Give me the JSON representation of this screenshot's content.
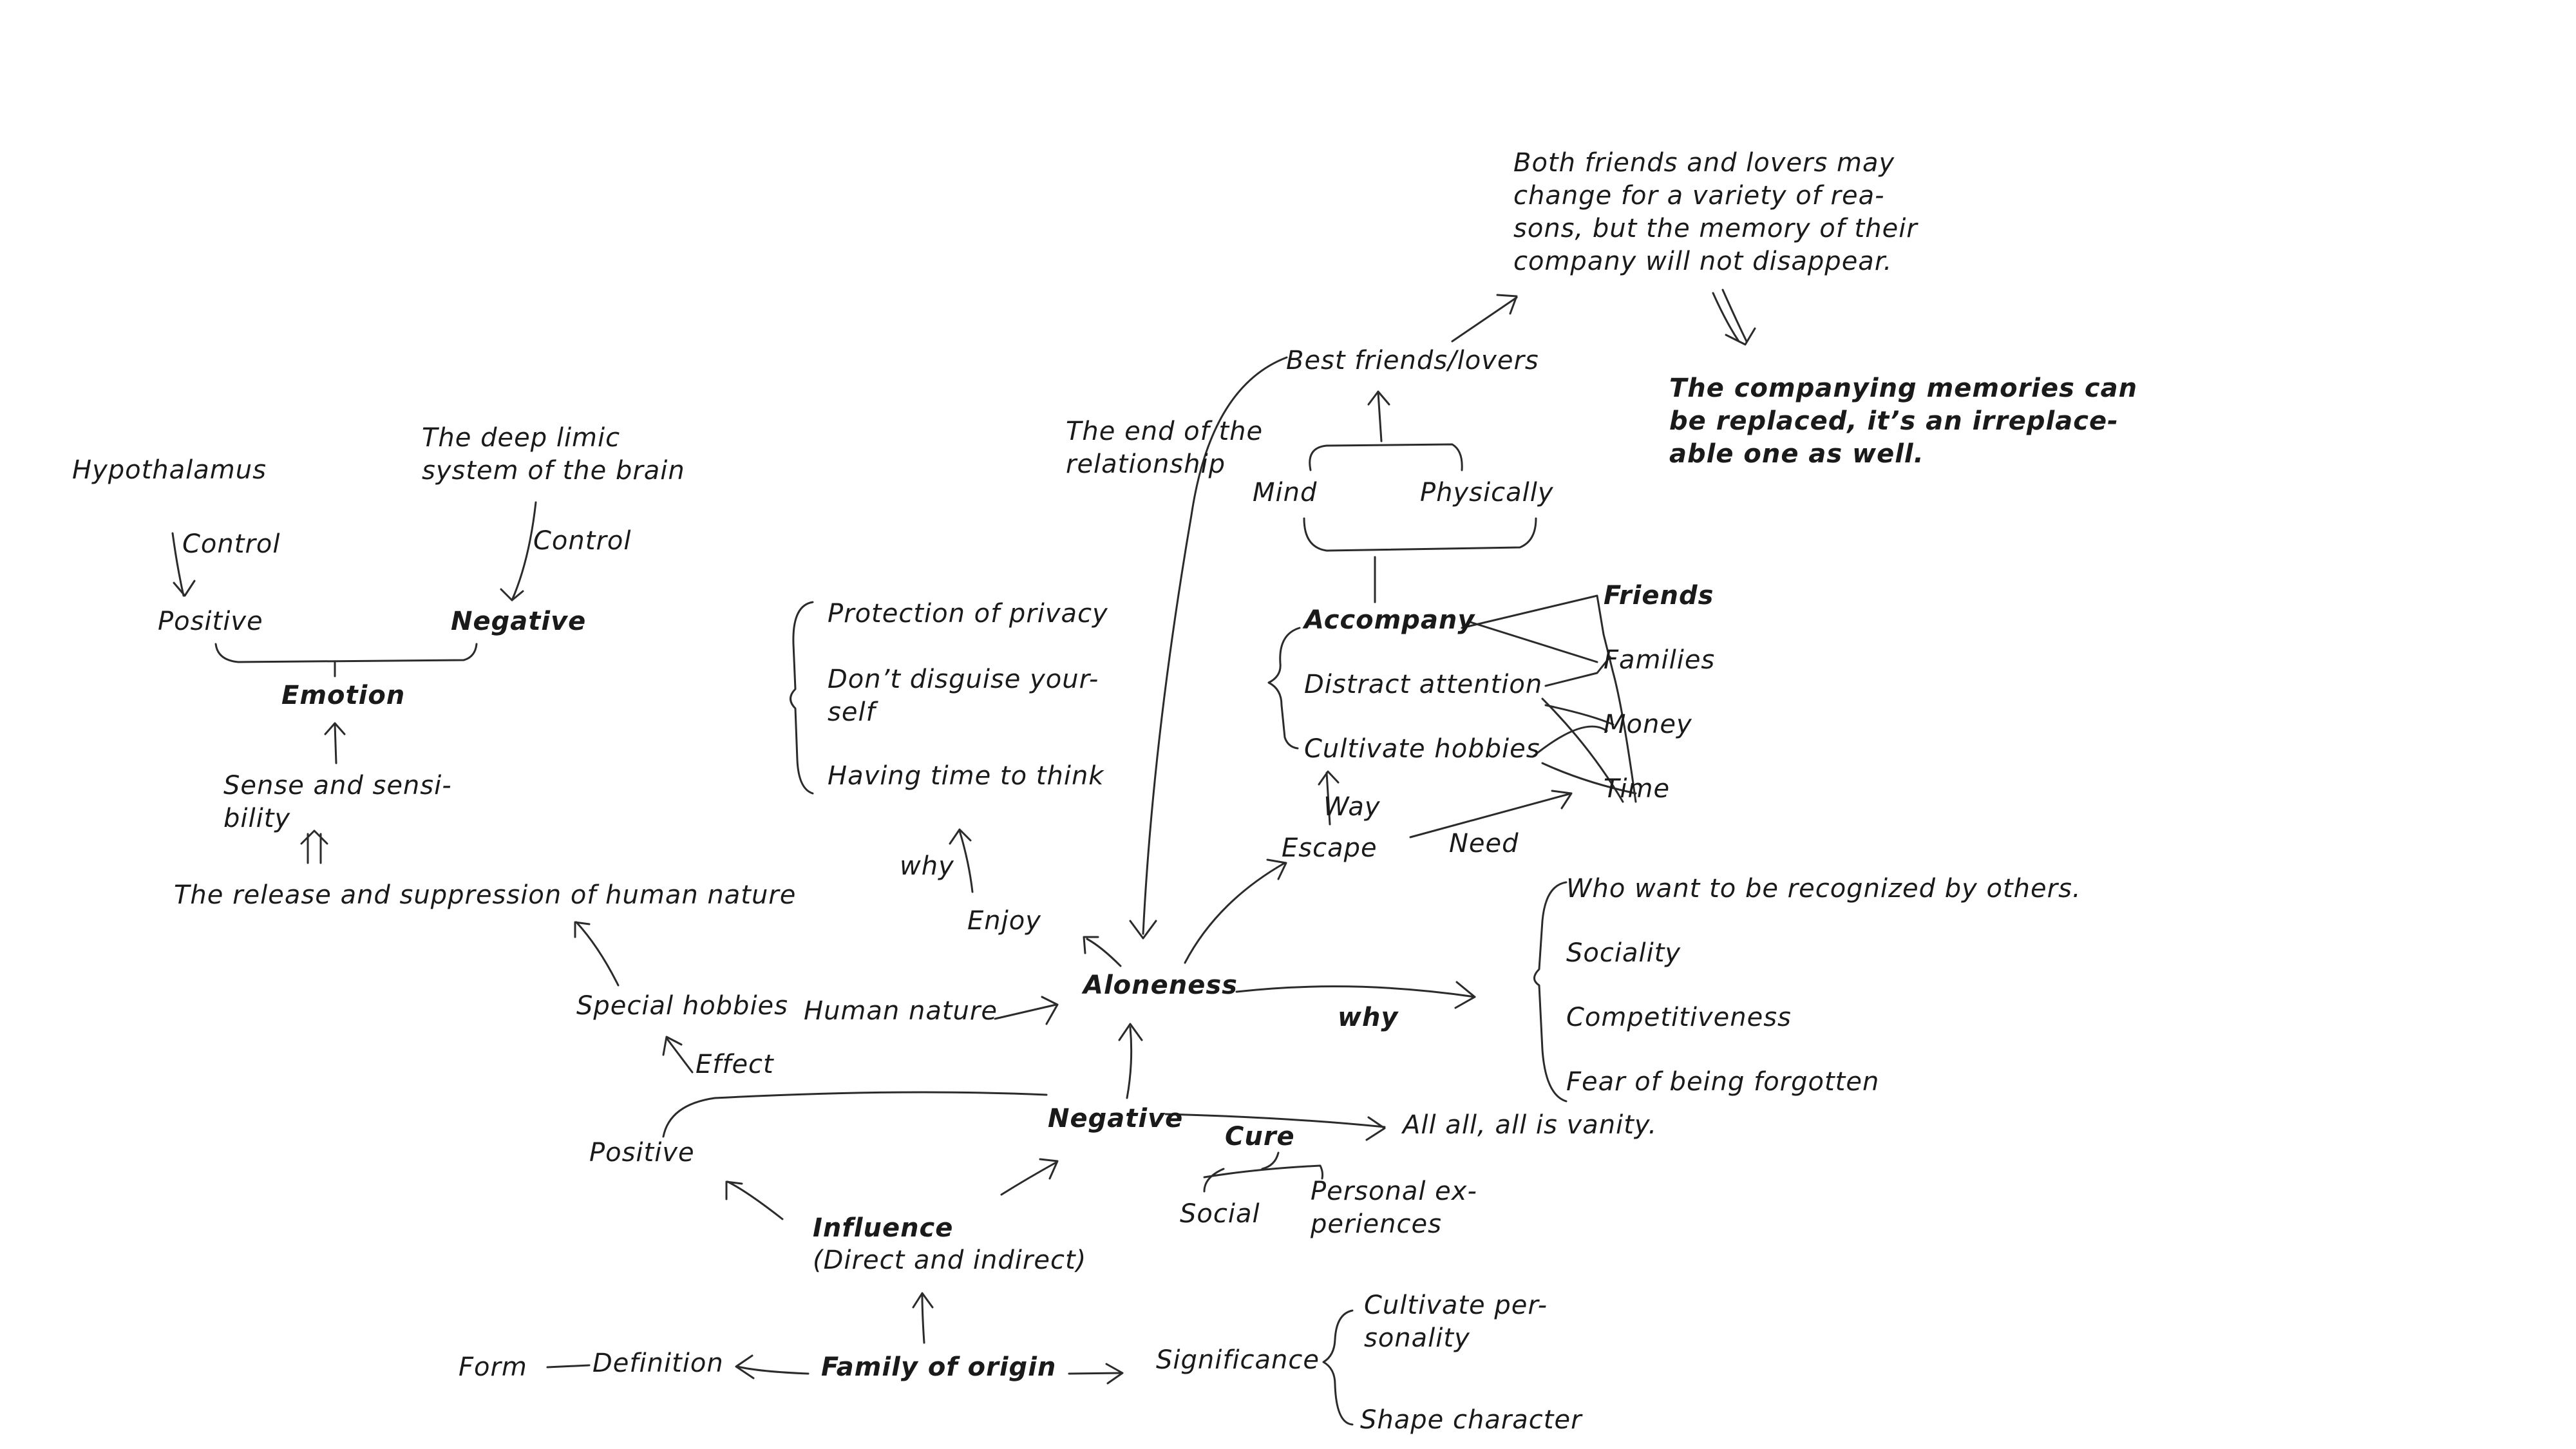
{
  "nodes": {
    "hypothalamus": "Hypothalamus",
    "deep_limbic": "The deep limic\nsystem of the brain",
    "control_left": "Control",
    "control_right": "Control",
    "positive_top": "Positive",
    "negative_top": "Negative",
    "emotion": "Emotion",
    "sense": "Sense and sensi-\nbility",
    "release": "The release and suppression of human nature",
    "protection": "Protection of privacy",
    "dont_disguise": "Don’t  disguise your-\nself",
    "having_time": "Having time to think",
    "why_left": "why",
    "enjoy": "Enjoy",
    "end_relationship": "The end of the\nrelationship",
    "best_friends": "Best friends/lovers",
    "both_friends": "Both friends and lovers may\nchange for a variety of rea-\nsons, but the memory of their\ncompany will not disappear.",
    "companying": "The companying memories can\nbe replaced, it’s an irreplace-\nable one as well.",
    "mind": "Mind",
    "physically": "Physically",
    "accompany": "Accompany",
    "distract": "Distract attention",
    "cultivate_hobbies": "Cultivate hobbies",
    "friends": "Friends",
    "families": "Families",
    "money": "Money",
    "time": "Time",
    "way": "Way",
    "need": "Need",
    "escape": "Escape",
    "aloneness": "Aloneness",
    "human_nature": "Human nature",
    "special_hobbies": "Special hobbies",
    "effect": "Effect",
    "positive_mid": "Positive",
    "negative_mid": "Negative",
    "why_right": "why",
    "recognized": "Who want to be recognized by others.",
    "sociality": "Sociality",
    "competitiveness": "Competitiveness",
    "fear": "Fear of  being forgotten",
    "vanity": "All all, all is vanity.",
    "cure": "Cure",
    "social": "Social",
    "personal": "Personal ex-\nperiences",
    "influence": "Influence",
    "direct_indirect": "(Direct and indirect)",
    "form": "Form",
    "definition": "Definition",
    "family_origin": "Family of origin",
    "significance": "Significance",
    "cultivate_personality": "Cultivate per-\nsonality",
    "shape_character": "Shape character"
  }
}
